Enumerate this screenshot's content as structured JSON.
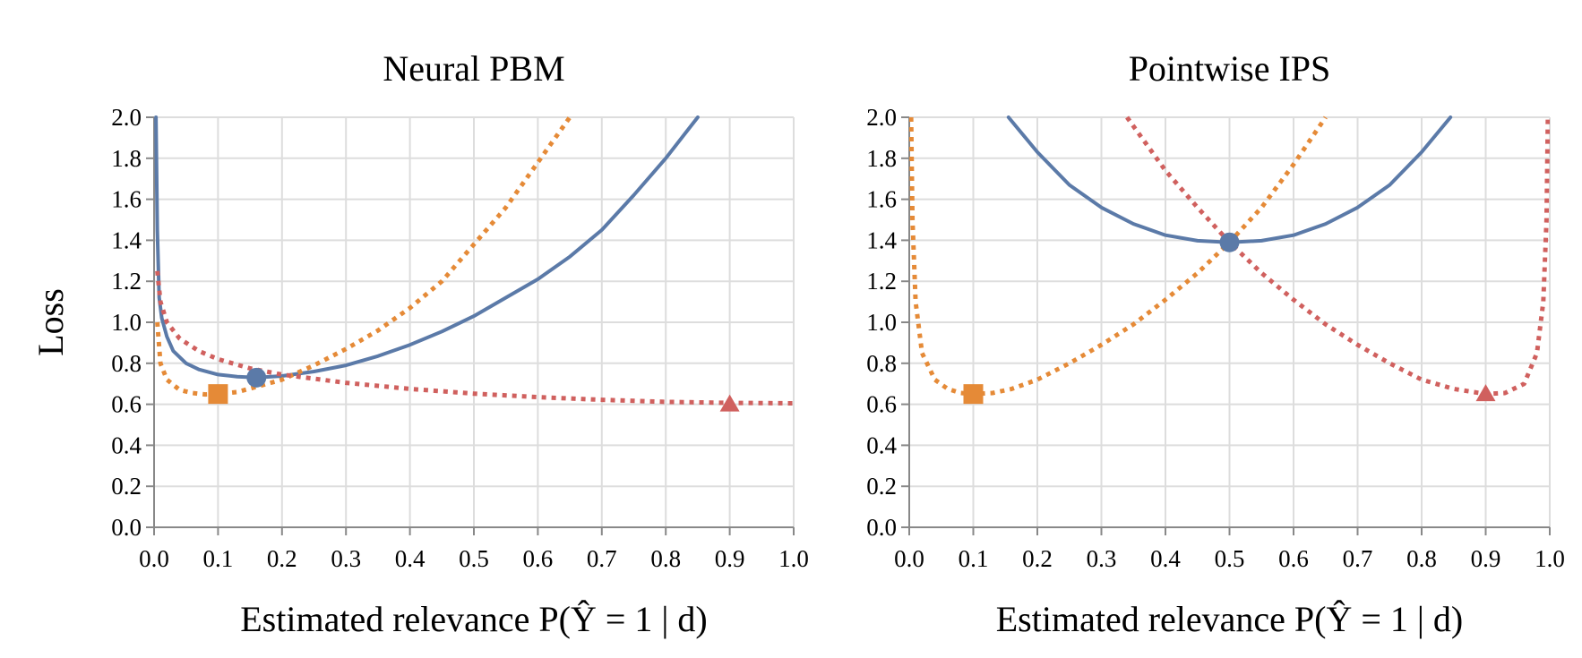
{
  "chart_data": [
    {
      "type": "line",
      "title": "Neural PBM",
      "xlabel": "Estimated relevance P(Ŷ = 1 | d)",
      "ylabel": "Loss",
      "xlim": [
        0.0,
        1.0
      ],
      "ylim": [
        0.0,
        2.0
      ],
      "grid": true,
      "x_ticks": [
        "0.0",
        "0.1",
        "0.2",
        "0.3",
        "0.4",
        "0.5",
        "0.6",
        "0.7",
        "0.8",
        "0.9",
        "1.0"
      ],
      "y_ticks": [
        "0.0",
        "0.2",
        "0.4",
        "0.6",
        "0.8",
        "1.0",
        "1.2",
        "1.4",
        "1.6",
        "1.8",
        "2.0"
      ],
      "series": [
        {
          "color": "#5b7aa8",
          "style": "solid",
          "x": [
            0.003,
            0.005,
            0.008,
            0.012,
            0.02,
            0.03,
            0.05,
            0.07,
            0.1,
            0.13,
            0.16,
            0.2,
            0.25,
            0.3,
            0.35,
            0.4,
            0.45,
            0.5,
            0.55,
            0.6,
            0.65,
            0.7,
            0.75,
            0.8,
            0.85
          ],
          "y": [
            2.0,
            1.45,
            1.12,
            1.02,
            0.93,
            0.86,
            0.8,
            0.77,
            0.745,
            0.735,
            0.73,
            0.738,
            0.76,
            0.79,
            0.835,
            0.89,
            0.955,
            1.03,
            1.12,
            1.21,
            1.32,
            1.45,
            1.62,
            1.8,
            2.0
          ],
          "marker": {
            "shape": "circle",
            "x": 0.16,
            "y": 0.73
          }
        },
        {
          "color": "#e58a37",
          "style": "dotted",
          "x": [
            0.005,
            0.01,
            0.02,
            0.04,
            0.06,
            0.08,
            0.1,
            0.13,
            0.16,
            0.2,
            0.25,
            0.3,
            0.35,
            0.4,
            0.45,
            0.5,
            0.55,
            0.6,
            0.65
          ],
          "y": [
            1.0,
            0.8,
            0.72,
            0.67,
            0.655,
            0.648,
            0.65,
            0.66,
            0.685,
            0.72,
            0.79,
            0.87,
            0.96,
            1.07,
            1.2,
            1.38,
            1.56,
            1.78,
            2.0
          ],
          "marker": {
            "shape": "square",
            "x": 0.1,
            "y": 0.65
          }
        },
        {
          "color": "#d0605e",
          "style": "dotted",
          "x": [
            0.005,
            0.01,
            0.02,
            0.04,
            0.07,
            0.1,
            0.15,
            0.2,
            0.3,
            0.4,
            0.5,
            0.6,
            0.7,
            0.8,
            0.9,
            1.0
          ],
          "y": [
            1.25,
            1.1,
            1.0,
            0.92,
            0.86,
            0.82,
            0.775,
            0.745,
            0.705,
            0.675,
            0.652,
            0.635,
            0.622,
            0.612,
            0.607,
            0.605
          ],
          "marker": {
            "shape": "triangle",
            "x": 0.9,
            "y": 0.6
          }
        }
      ]
    },
    {
      "type": "line",
      "title": "Pointwise IPS",
      "xlabel": "Estimated relevance P(Ŷ = 1 | d)",
      "ylabel": "",
      "xlim": [
        0.0,
        1.0
      ],
      "ylim": [
        0.0,
        2.0
      ],
      "grid": true,
      "x_ticks": [
        "0.0",
        "0.1",
        "0.2",
        "0.3",
        "0.4",
        "0.5",
        "0.6",
        "0.7",
        "0.8",
        "0.9",
        "1.0"
      ],
      "y_ticks": [
        "0.0",
        "0.2",
        "0.4",
        "0.6",
        "0.8",
        "1.0",
        "1.2",
        "1.4",
        "1.6",
        "1.8",
        "2.0"
      ],
      "series": [
        {
          "color": "#5b7aa8",
          "style": "solid",
          "x": [
            0.155,
            0.2,
            0.25,
            0.3,
            0.35,
            0.4,
            0.45,
            0.5,
            0.55,
            0.6,
            0.65,
            0.7,
            0.75,
            0.8,
            0.845
          ],
          "y": [
            2.0,
            1.83,
            1.67,
            1.56,
            1.48,
            1.425,
            1.398,
            1.39,
            1.398,
            1.425,
            1.48,
            1.56,
            1.67,
            1.83,
            2.0
          ],
          "marker": {
            "shape": "circle",
            "x": 0.5,
            "y": 1.39
          }
        },
        {
          "color": "#e58a37",
          "style": "dotted",
          "x": [
            0.003,
            0.005,
            0.01,
            0.02,
            0.04,
            0.06,
            0.08,
            0.1,
            0.13,
            0.16,
            0.2,
            0.25,
            0.3,
            0.35,
            0.4,
            0.45,
            0.5,
            0.55,
            0.6,
            0.65
          ],
          "y": [
            2.0,
            1.5,
            1.1,
            0.85,
            0.72,
            0.675,
            0.655,
            0.65,
            0.655,
            0.675,
            0.72,
            0.8,
            0.89,
            0.99,
            1.11,
            1.24,
            1.39,
            1.56,
            1.77,
            2.0
          ],
          "marker": {
            "shape": "square",
            "x": 0.1,
            "y": 0.65
          }
        },
        {
          "color": "#d0605e",
          "style": "dotted",
          "x": [
            0.34,
            0.4,
            0.45,
            0.5,
            0.55,
            0.6,
            0.65,
            0.7,
            0.75,
            0.8,
            0.85,
            0.9,
            0.93,
            0.96,
            0.98,
            0.99,
            0.995,
            0.997
          ],
          "y": [
            2.0,
            1.74,
            1.56,
            1.39,
            1.24,
            1.11,
            0.99,
            0.89,
            0.8,
            0.72,
            0.675,
            0.65,
            0.655,
            0.7,
            0.85,
            1.1,
            1.5,
            2.0
          ],
          "marker": {
            "shape": "triangle",
            "x": 0.9,
            "y": 0.65
          }
        }
      ]
    }
  ]
}
